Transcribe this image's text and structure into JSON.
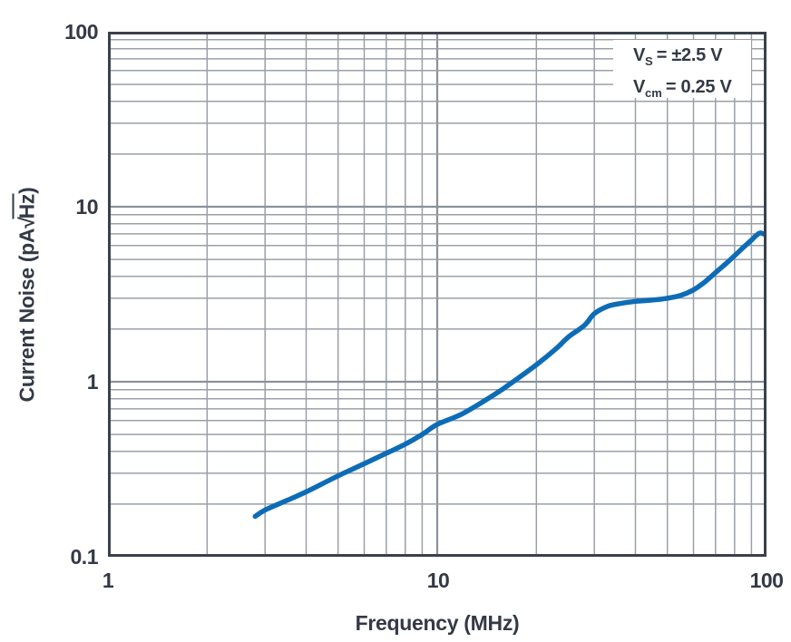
{
  "chart_data": {
    "type": "line",
    "title": "",
    "xlabel": "Frequency (MHz)",
    "ylabel": "Current Noise (pA√Hz)",
    "ylabel_parts": {
      "prefix": "Current Noise (pA",
      "radical": "√",
      "overline": "Hz",
      "suffix": ")"
    },
    "x_scale": "log",
    "y_scale": "log",
    "xlim": [
      1,
      100
    ],
    "ylim": [
      0.1,
      100
    ],
    "grid": "major-and-minor, both axes",
    "legend": "none",
    "x_tick_labels": [
      "1",
      "10",
      "100"
    ],
    "y_tick_labels": [
      "100",
      "10",
      "1",
      "0.1"
    ],
    "annotation": {
      "lines": [
        {
          "base": "V",
          "sub": "S",
          "rest": "= ±2.5 V"
        },
        {
          "base": "V",
          "sub": "cm",
          "rest": "= 0.25 V"
        }
      ]
    },
    "series": [
      {
        "name": "current-noise-curve",
        "color": "#0c6cb7",
        "points": [
          [
            2.8,
            0.17
          ],
          [
            3,
            0.185
          ],
          [
            3.5,
            0.21
          ],
          [
            4,
            0.235
          ],
          [
            5,
            0.29
          ],
          [
            6,
            0.34
          ],
          [
            7,
            0.39
          ],
          [
            8,
            0.44
          ],
          [
            9,
            0.5
          ],
          [
            10,
            0.57
          ],
          [
            12,
            0.66
          ],
          [
            15,
            0.85
          ],
          [
            17,
            1.0
          ],
          [
            20,
            1.25
          ],
          [
            23,
            1.55
          ],
          [
            25,
            1.8
          ],
          [
            28,
            2.1
          ],
          [
            30,
            2.45
          ],
          [
            33,
            2.7
          ],
          [
            36,
            2.8
          ],
          [
            40,
            2.88
          ],
          [
            45,
            2.93
          ],
          [
            50,
            3.0
          ],
          [
            55,
            3.12
          ],
          [
            60,
            3.35
          ],
          [
            65,
            3.72
          ],
          [
            70,
            4.2
          ],
          [
            75,
            4.7
          ],
          [
            80,
            5.25
          ],
          [
            85,
            5.85
          ],
          [
            90,
            6.45
          ],
          [
            93,
            6.85
          ],
          [
            96,
            7.08
          ],
          [
            100,
            6.85
          ]
        ]
      }
    ],
    "colors": {
      "curve": "#0c6cb7",
      "grid_minor": "#9aa0a8",
      "grid_major": "#8b919a",
      "frame": "#3a414d",
      "text": "#333a46"
    }
  }
}
